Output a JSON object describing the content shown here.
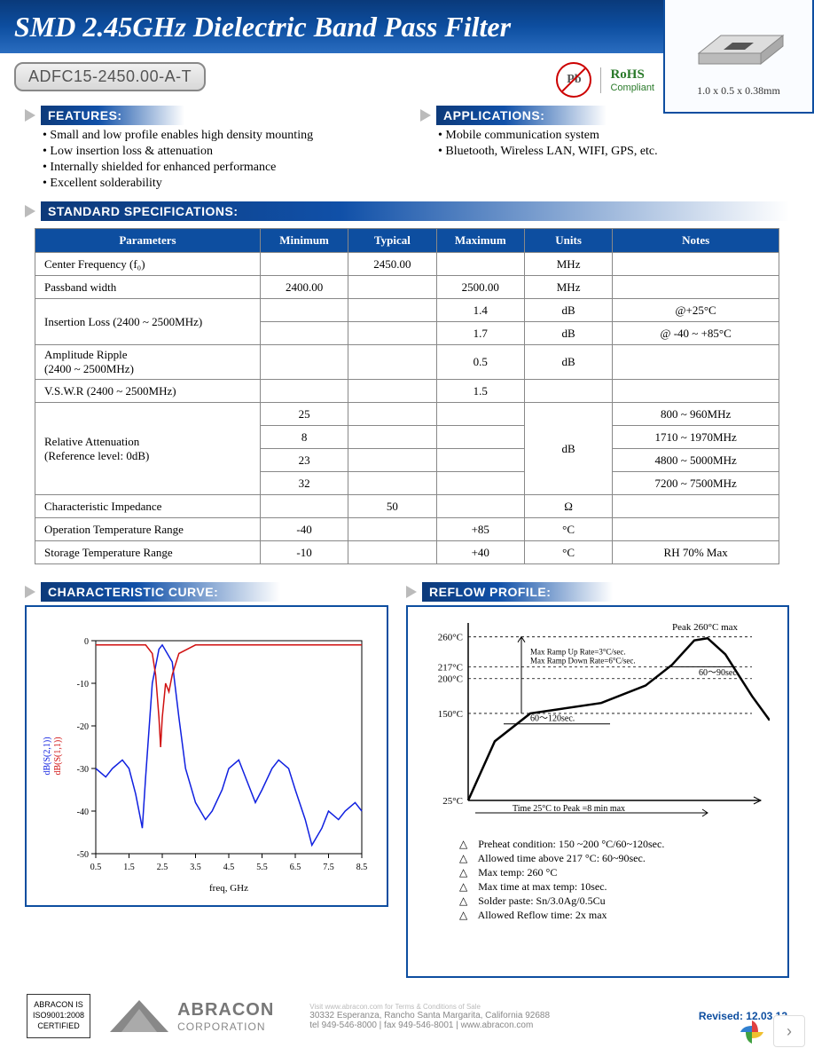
{
  "header": {
    "title": "SMD 2.45GHz Dielectric Band Pass Filter",
    "part_number": "ADFC15-2450.00-A-T",
    "rohs": {
      "line1": "RoHS",
      "line2": "Compliant"
    },
    "pb_symbol": "Pb",
    "dimensions": "1.0 x 0.5 x 0.38mm"
  },
  "features": {
    "label": "FEATURES:",
    "items": [
      "Small and low profile enables high density mounting",
      "Low insertion loss & attenuation",
      "Internally shielded for enhanced performance",
      "Excellent solderability"
    ]
  },
  "applications": {
    "label": "APPLICATIONS:",
    "items": [
      "Mobile communication system",
      "Bluetooth, Wireless LAN, WIFI, GPS, etc."
    ]
  },
  "specs": {
    "label": "STANDARD SPECIFICATIONS:",
    "columns": [
      "Parameters",
      "Minimum",
      "Typical",
      "Maximum",
      "Units",
      "Notes"
    ],
    "rows": [
      {
        "param": "Center Frequency (f₀)",
        "min": "",
        "typ": "2450.00",
        "max": "",
        "units": "MHz",
        "notes": ""
      },
      {
        "param": "Passband width",
        "min": "2400.00",
        "typ": "",
        "max": "2500.00",
        "units": "MHz",
        "notes": ""
      },
      {
        "param_rowspan": 2,
        "param": "Insertion Loss (2400 ~ 2500MHz)",
        "min": "",
        "typ": "",
        "max": "1.4",
        "units": "dB",
        "notes": "@+25°C"
      },
      {
        "min": "",
        "typ": "",
        "max": "1.7",
        "units": "dB",
        "notes": "@ -40 ~ +85°C"
      },
      {
        "param": "Amplitude Ripple\n(2400 ~ 2500MHz)",
        "min": "",
        "typ": "",
        "max": "0.5",
        "units": "dB",
        "notes": ""
      },
      {
        "param": "V.S.W.R (2400 ~ 2500MHz)",
        "min": "",
        "typ": "",
        "max": "1.5",
        "units": "",
        "notes": ""
      },
      {
        "param_rowspan": 4,
        "units_rowspan": 4,
        "param": "Relative Attenuation\n(Reference level: 0dB)",
        "min": "25",
        "typ": "",
        "max": "",
        "units": "dB",
        "notes": "800 ~ 960MHz"
      },
      {
        "min": "8",
        "typ": "",
        "max": "",
        "notes": "1710 ~ 1970MHz"
      },
      {
        "min": "23",
        "typ": "",
        "max": "",
        "notes": "4800 ~ 5000MHz"
      },
      {
        "min": "32",
        "typ": "",
        "max": "",
        "notes": "7200 ~ 7500MHz"
      },
      {
        "param": "Characteristic Impedance",
        "min": "",
        "typ": "50",
        "max": "",
        "units": "Ω",
        "notes": ""
      },
      {
        "param": "Operation Temperature Range",
        "min": "-40",
        "typ": "",
        "max": "+85",
        "units": "°C",
        "notes": ""
      },
      {
        "param": "Storage Temperature Range",
        "min": "-10",
        "typ": "",
        "max": "+40",
        "units": "°C",
        "notes": "RH 70% Max"
      }
    ]
  },
  "curve": {
    "label": "CHARACTERISTIC CURVE:",
    "type": "line",
    "xlabel": "freq, GHz",
    "ylabel_blue": "dB(S(2,1))",
    "ylabel_red": "dB(S(1,1))",
    "xlim": [
      0.5,
      8.5
    ],
    "xtick_step": 1.0,
    "ylim": [
      -50,
      0
    ],
    "ytick_step": 10,
    "background_color": "#ffffff",
    "grid_color": "none",
    "axis_color": "#000000",
    "label_fontsize": 11,
    "tick_fontsize": 10,
    "series": [
      {
        "name": "S21",
        "color": "#1020e0",
        "width": 1.5,
        "x": [
          0.5,
          0.8,
          1.0,
          1.3,
          1.5,
          1.7,
          1.9,
          2.0,
          2.2,
          2.4,
          2.5,
          2.8,
          3.0,
          3.2,
          3.5,
          3.8,
          4.0,
          4.3,
          4.5,
          4.8,
          5.0,
          5.3,
          5.5,
          5.8,
          6.0,
          6.3,
          6.5,
          6.8,
          7.0,
          7.3,
          7.5,
          7.8,
          8.0,
          8.3,
          8.5
        ],
        "y": [
          -30,
          -32,
          -30,
          -28,
          -30,
          -36,
          -44,
          -32,
          -10,
          -2,
          -1,
          -5,
          -18,
          -30,
          -38,
          -42,
          -40,
          -35,
          -30,
          -28,
          -32,
          -38,
          -35,
          -30,
          -28,
          -30,
          -35,
          -42,
          -48,
          -44,
          -40,
          -42,
          -40,
          -38,
          -40
        ]
      },
      {
        "name": "S11",
        "color": "#d01010",
        "width": 1.5,
        "x": [
          0.5,
          1.0,
          1.5,
          2.0,
          2.2,
          2.3,
          2.4,
          2.45,
          2.5,
          2.6,
          2.7,
          2.8,
          3.0,
          3.5,
          4.0,
          4.5,
          5.0,
          5.5,
          6.0,
          6.5,
          7.0,
          7.5,
          8.0,
          8.5
        ],
        "y": [
          -1,
          -1,
          -1,
          -1,
          -3,
          -8,
          -18,
          -25,
          -18,
          -10,
          -12,
          -8,
          -3,
          -1,
          -1,
          -1,
          -1,
          -1,
          -1,
          -1,
          -1,
          -1,
          -1,
          -1
        ]
      }
    ]
  },
  "reflow": {
    "label": "REFLOW PROFILE:",
    "type": "profile",
    "y_ticks": [
      "25°C",
      "150°C",
      "200°C",
      "217°C",
      "260°C"
    ],
    "y_values": [
      25,
      150,
      200,
      217,
      260
    ],
    "peak_label": "Peak 260°C max",
    "ramp_up": "Max Ramp Up Rate=3°C/sec.",
    "ramp_down": "Max Ramp Down Rate=6°C/sec.",
    "preheat_span": "60～120sec.",
    "above217_span": "60～90sec.",
    "time_label": "Time 25°C to Peak =8 min max",
    "curve_color": "#000000",
    "curve_width": 2.5,
    "notes": [
      "Preheat condition: 150 ~200       °C/60~120sec.",
      "Allowed time above 217       °C: 60~90sec.",
      "Max temp: 260      °C",
      "Max time at max temp: 10sec.",
      "Solder paste: Sn/3.0Ag/0.5Cu",
      "Allowed Reflow time: 2x max"
    ]
  },
  "footer": {
    "iso": "ABRACON IS\nISO9001:2008\nCERTIFIED",
    "company": "ABRACON",
    "company_sub": "CORPORATION",
    "terms": "Visit www.abracon.com for Terms & Conditions of Sale",
    "address": "30332 Esperanza, Rancho Santa Margarita, California 92688",
    "contact": "tel 949-546-8000  |  fax 949-546-8001  |  www.abracon.com",
    "revised": "Revised: 12.03.12"
  }
}
